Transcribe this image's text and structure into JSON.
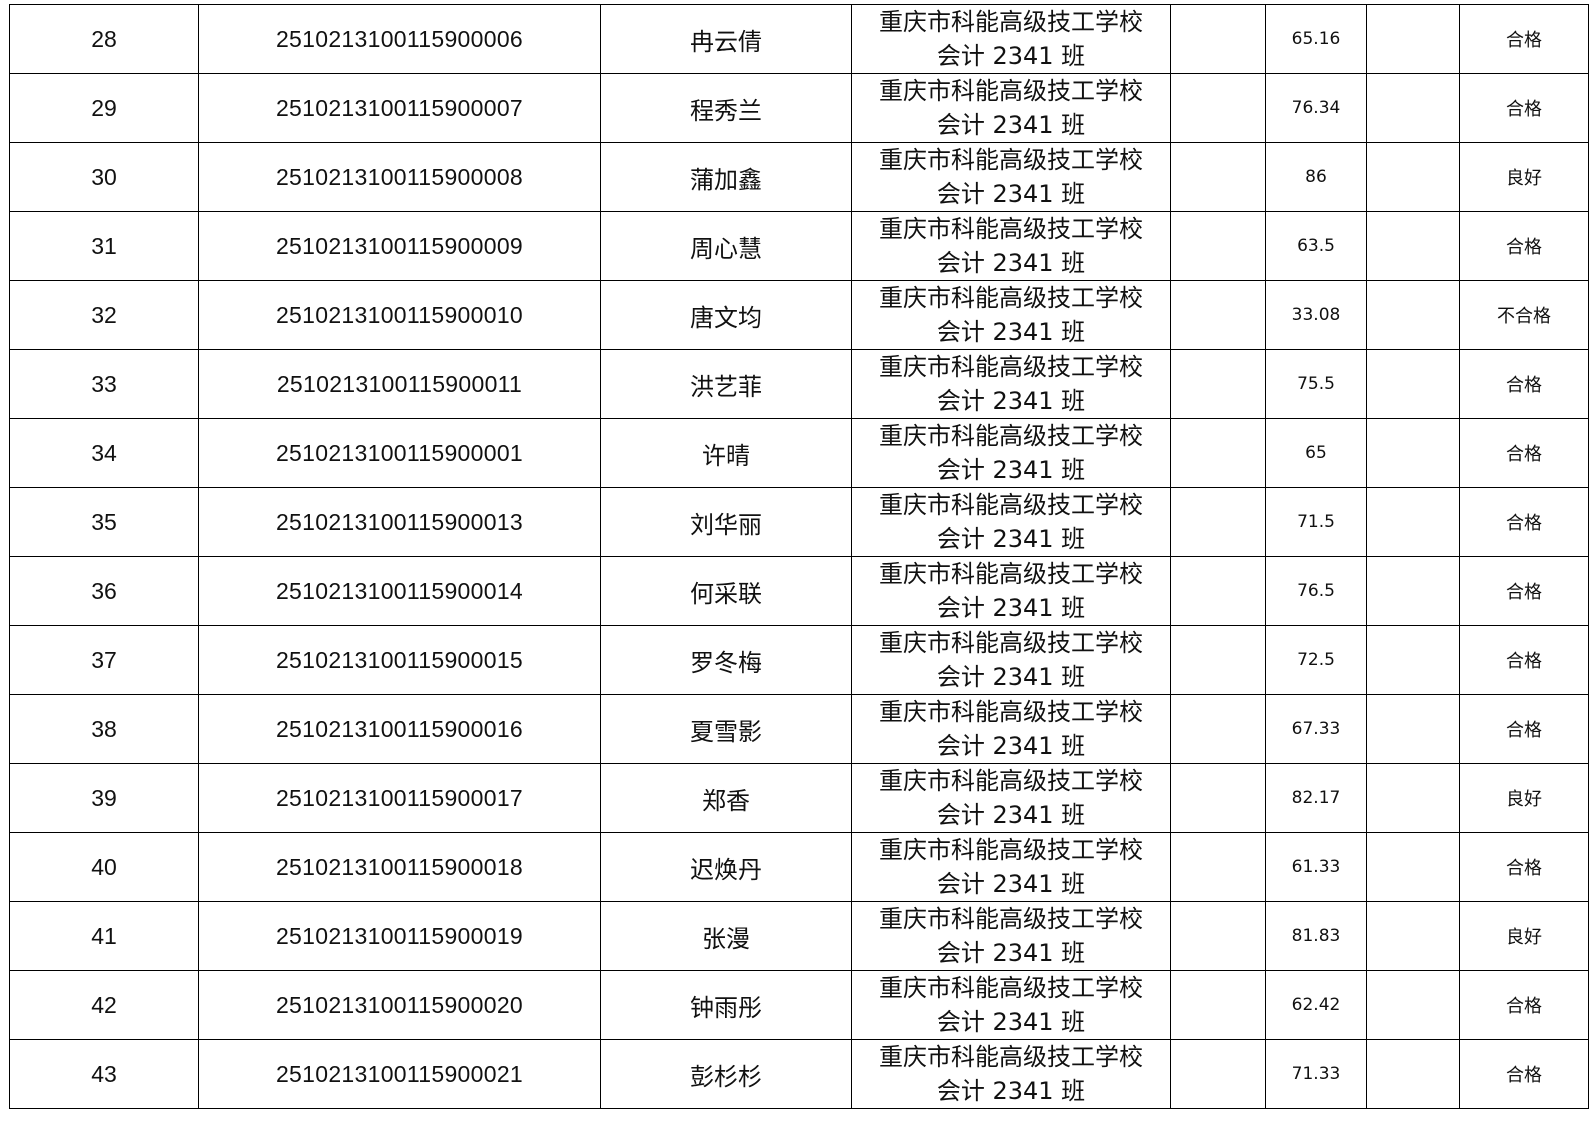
{
  "rows": [
    {
      "no": "28",
      "id": "251021310011590000６",
      "name": "冉云倩",
      "school": "重庆市科能高级技工学校",
      "class": "会计 2341 班",
      "score": "65.16",
      "grade": "合格"
    },
    {
      "no": "29",
      "id": "2510213100115900007",
      "name": "程秀兰",
      "school": "重庆市科能高级技工学校",
      "class": "会计 2341 班",
      "score": "76.34",
      "grade": "合格"
    },
    {
      "no": "30",
      "id": "2510213100115900008",
      "name": "蒲加鑫",
      "school": "重庆市科能高级技工学校",
      "class": "会计 2341 班",
      "score": "86",
      "grade": "良好"
    },
    {
      "no": "31",
      "id": "2510213100115900009",
      "name": "周心慧",
      "school": "重庆市科能高级技工学校",
      "class": "会计 2341 班",
      "score": "63.5",
      "grade": "合格"
    },
    {
      "no": "32",
      "id": "2510213100115900010",
      "name": "唐文均",
      "school": "重庆市科能高级技工学校",
      "class": "会计 2341 班",
      "score": "33.08",
      "grade": "不合格"
    },
    {
      "no": "33",
      "id": "2510213100115900011",
      "name": "洪艺菲",
      "school": "重庆市科能高级技工学校",
      "class": "会计 2341 班",
      "score": "75.5",
      "grade": "合格"
    },
    {
      "no": "34",
      "id": "2510213100115900001",
      "name": "许晴",
      "school": "重庆市科能高级技工学校",
      "class": "会计 2341 班",
      "score": "65",
      "grade": "合格"
    },
    {
      "no": "35",
      "id": "2510213100115900013",
      "name": "刘华丽",
      "school": "重庆市科能高级技工学校",
      "class": "会计 2341 班",
      "score": "71.5",
      "grade": "合格"
    },
    {
      "no": "36",
      "id": "2510213100115900014",
      "name": "何采联",
      "school": "重庆市科能高级技工学校",
      "class": "会计 2341 班",
      "score": "76.5",
      "grade": "合格"
    },
    {
      "no": "37",
      "id": "2510213100115900015",
      "name": "罗冬梅",
      "school": "重庆市科能高级技工学校",
      "class": "会计 2341 班",
      "score": "72.5",
      "grade": "合格"
    },
    {
      "no": "38",
      "id": "2510213100115900016",
      "name": "夏雪影",
      "school": "重庆市科能高级技工学校",
      "class": "会计 2341 班",
      "score": "67.33",
      "grade": "合格"
    },
    {
      "no": "39",
      "id": "2510213100115900017",
      "name": "郑香",
      "school": "重庆市科能高级技工学校",
      "class": "会计 2341 班",
      "score": "82.17",
      "grade": "良好"
    },
    {
      "no": "40",
      "id": "2510213100115900018",
      "name": "迟焕丹",
      "school": "重庆市科能高级技工学校",
      "class": "会计 2341 班",
      "score": "61.33",
      "grade": "合格"
    },
    {
      "no": "41",
      "id": "2510213100115900019",
      "name": "张漫",
      "school": "重庆市科能高级技工学校",
      "class": "会计 2341 班",
      "score": "81.83",
      "grade": "良好"
    },
    {
      "no": "42",
      "id": "2510213100115900020",
      "name": "钟雨彤",
      "school": "重庆市科能高级技工学校",
      "class": "会计 2341 班",
      "score": "62.42",
      "grade": "合格"
    },
    {
      "no": "43",
      "id": "2510213100115900021",
      "name": "彭杉杉",
      "school": "重庆市科能高级技工学校",
      "class": "会计 2341 班",
      "score": "71.33",
      "grade": "合格"
    }
  ]
}
